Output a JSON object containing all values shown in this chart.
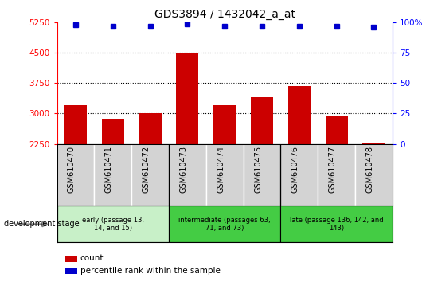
{
  "title": "GDS3894 / 1432042_a_at",
  "categories": [
    "GSM610470",
    "GSM610471",
    "GSM610472",
    "GSM610473",
    "GSM610474",
    "GSM610475",
    "GSM610476",
    "GSM610477",
    "GSM610478"
  ],
  "bar_values": [
    3200,
    2870,
    3000,
    4500,
    3200,
    3400,
    3680,
    2960,
    2280
  ],
  "percentile_values": [
    98,
    97,
    97,
    99,
    97,
    97,
    97,
    97,
    96
  ],
  "ylim_left": [
    2250,
    5250
  ],
  "ylim_right": [
    0,
    100
  ],
  "yticks_left": [
    2250,
    3000,
    3750,
    4500,
    5250
  ],
  "yticks_right": [
    0,
    25,
    50,
    75,
    100
  ],
  "bar_color": "#cc0000",
  "dot_color": "#0000cc",
  "groups": [
    {
      "label": "early (passage 13,\n14, and 15)",
      "start": 0,
      "end": 2,
      "color": "#90ee90"
    },
    {
      "label": "intermediate (passages 63,\n71, and 73)",
      "start": 3,
      "end": 5,
      "color": "#55dd55"
    },
    {
      "label": "late (passage 136, 142, and\n143)",
      "start": 6,
      "end": 8,
      "color": "#55dd55"
    }
  ],
  "legend_count_label": "count",
  "legend_pct_label": "percentile rank within the sample",
  "dev_stage_label": "development stage",
  "tick_label_bg": "#d3d3d3",
  "group_early_color": "#c8f0c8",
  "group_mid_color": "#44cc44",
  "group_late_color": "#44cc44"
}
